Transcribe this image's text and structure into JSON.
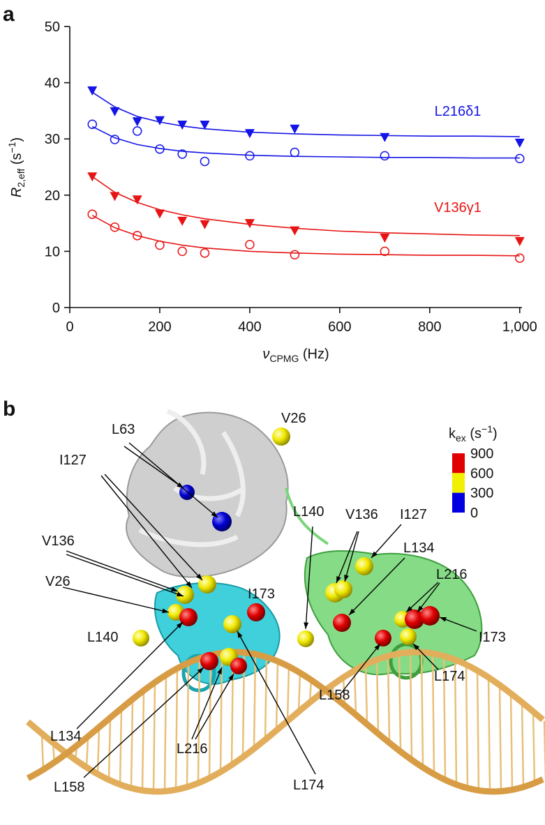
{
  "chart_data": {
    "type": "scatter",
    "panel_label": "a",
    "xlabel": [
      "ν",
      "CPMG",
      " (Hz)"
    ],
    "ylabel": [
      "R",
      "2,eff",
      " (s",
      "−1",
      ")"
    ],
    "xlim": [
      0,
      1005
    ],
    "ylim": [
      0,
      50
    ],
    "xticks": [
      0,
      200,
      400,
      600,
      800,
      {
        "value": 1000,
        "label": "1,000"
      }
    ],
    "yticks": [
      0,
      10,
      20,
      30,
      40,
      50
    ],
    "x": [
      50,
      100,
      150,
      200,
      250,
      300,
      400,
      500,
      700,
      1000
    ],
    "fit_x": [
      50,
      100,
      150,
      200,
      250,
      300,
      400,
      500,
      600,
      700,
      800,
      900,
      1000
    ],
    "series": [
      {
        "color": "#1414e6",
        "marker": "triangle",
        "values": [
          38.6,
          34.9,
          33.1,
          33.3,
          32.5,
          32.5,
          31.0,
          31.8,
          30.3,
          29.3
        ],
        "fit": [
          38.3,
          35.7,
          34.0,
          33.0,
          32.3,
          31.8,
          31.2,
          30.9,
          30.7,
          30.6,
          30.5,
          30.5,
          30.4
        ]
      },
      {
        "color": "#1414e6",
        "marker": "circle",
        "values": [
          32.6,
          29.9,
          31.4,
          28.2,
          27.3,
          26.0,
          27.0,
          27.6,
          27.0,
          26.5
        ],
        "fit": [
          32.2,
          30.2,
          29.0,
          28.3,
          27.8,
          27.5,
          27.1,
          26.9,
          26.8,
          26.7,
          26.7,
          26.6,
          26.6
        ]
      },
      {
        "color": "#e61414",
        "marker": "triangle",
        "values": [
          23.3,
          19.8,
          19.2,
          16.7,
          15.4,
          14.8,
          15.0,
          13.7,
          12.4,
          11.8
        ],
        "fit": [
          23.3,
          20.5,
          18.7,
          17.4,
          16.5,
          15.8,
          14.8,
          14.1,
          13.6,
          13.3,
          13.1,
          12.9,
          12.8
        ]
      },
      {
        "color": "#e61414",
        "marker": "circle",
        "values": [
          16.6,
          14.3,
          12.8,
          11.1,
          10.0,
          9.7,
          11.2,
          9.4,
          10.0,
          8.8
        ],
        "fit": [
          16.4,
          14.2,
          12.8,
          11.8,
          11.1,
          10.6,
          10.0,
          9.7,
          9.5,
          9.4,
          9.3,
          9.3,
          9.2
        ]
      }
    ],
    "annotations": [
      {
        "text": "L216δ1",
        "color": "#1414e6"
      },
      {
        "text": "V136γ1",
        "color": "#e61414"
      }
    ]
  },
  "structure": {
    "panel_label": "b",
    "labels": [
      "L63",
      "V26",
      "I127",
      "V136",
      "V26",
      "L140",
      "I173",
      "L140",
      "V136",
      "I127",
      "L134",
      "L216",
      "I173",
      "L174",
      "L158",
      "L134",
      "L216",
      "L158",
      "L174"
    ],
    "colorbar": {
      "title": [
        "k",
        "ex",
        " (s",
        "−1",
        ")"
      ],
      "ticks": [
        900,
        600,
        300,
        0
      ],
      "colors": [
        "#e00000",
        "#f0f000",
        "#0000e0"
      ]
    }
  }
}
